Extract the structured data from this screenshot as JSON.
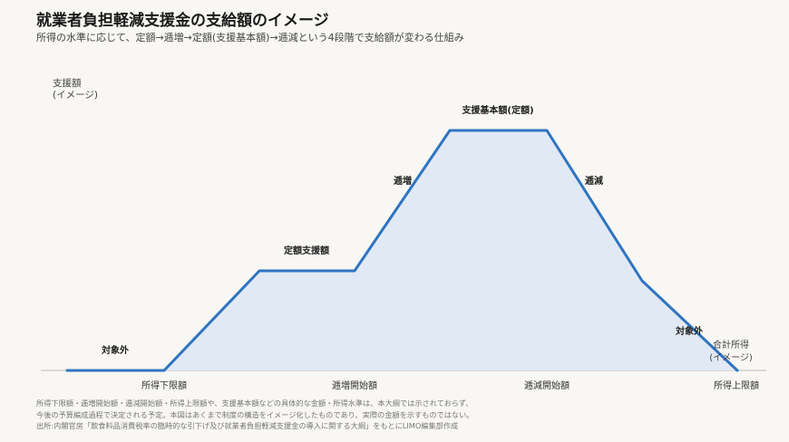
{
  "title": "就業者負担軽減支援金の支給額のイメージ",
  "subtitle": "所得の水準に応じて、定額→逓増→定額(支援基本額)→逓減という4段階で支給額が変わる仕組み",
  "y_axis_label": [
    "支援額",
    "(イメージ)"
  ],
  "x_axis_label": [
    "合計所得",
    "(イメージ)"
  ],
  "x_ticks": [
    "所得下限額",
    "逓増開始額",
    "逓減開始額",
    "所得上限額"
  ],
  "segment_labels": {
    "zero_left": "対象外",
    "fixed": "定額支援額",
    "increasing": "逓増",
    "basic": "支援基本額(定額)",
    "decreasing": "逓減",
    "zero_right": "対象外"
  },
  "footnote": [
    "所得下限額・逓増開始額・逓減開始額・所得上限額や、支援基本額などの具体的な金額・所得水準は、本大綱では示されておらず、",
    "今後の予算編成過程で決定される予定。本図はあくまで制度の構造をイメージ化したものであり、実際の金額を示すものではない。",
    "出所:内閣官房「飲食料品消費税率の臨時的な引下げ及び就業者負担軽減支援金の導入に関する大綱」をもとにLIMO編集部作成"
  ],
  "colors": {
    "line": "#2f74c0",
    "fill": "#dfe8f4",
    "axis": "#bbbbbb"
  }
}
